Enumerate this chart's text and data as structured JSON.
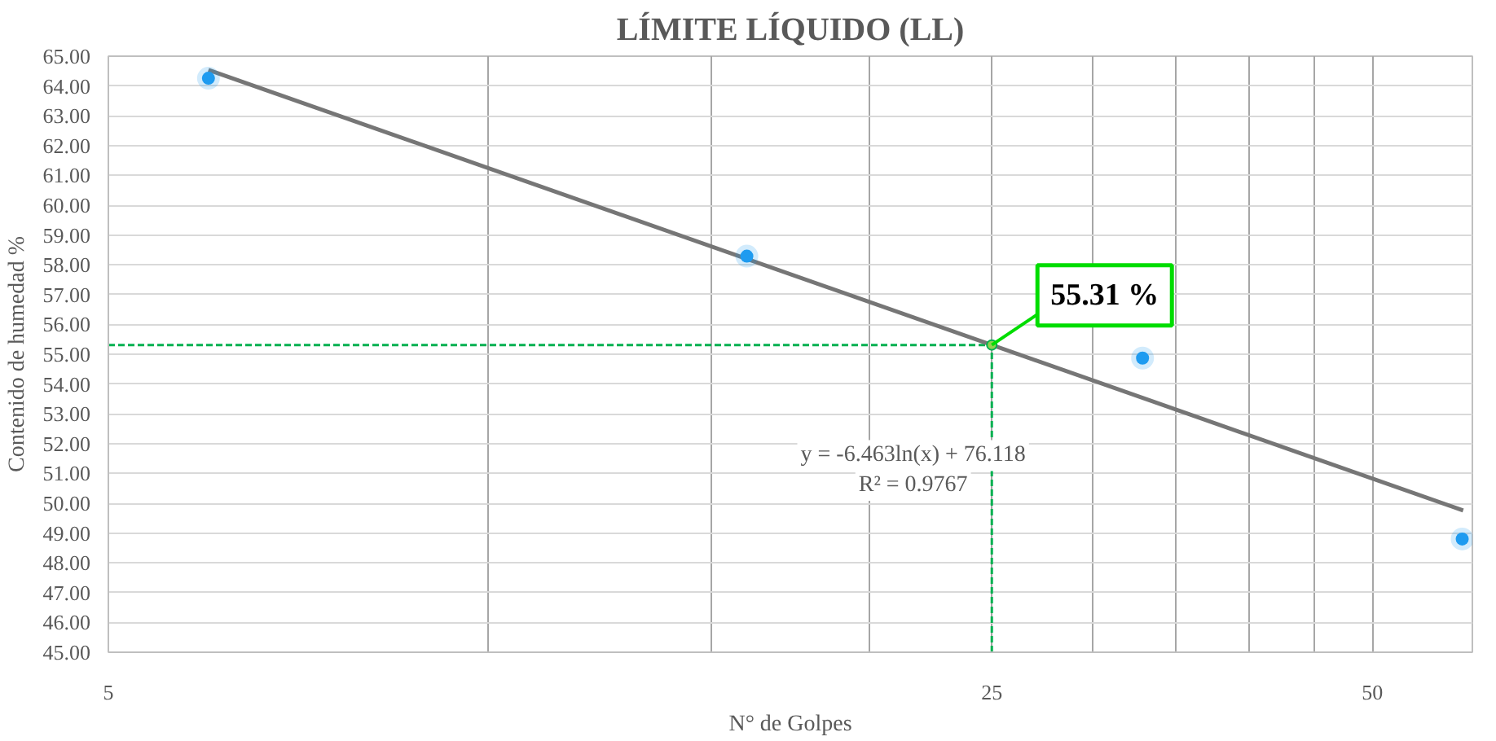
{
  "chart_data": {
    "type": "scatter",
    "title": "LÍMITE LÍQUIDO (LL)",
    "xlabel": "N° de Golpes",
    "ylabel": "Contenido de humedad %",
    "log": "x",
    "grid": true,
    "marker": "circle",
    "x": [
      6,
      16,
      32.9,
      58.9
    ],
    "series": [
      {
        "color": "#1e9bf0",
        "values": [
          64.26,
          58.29,
          54.87,
          48.8
        ]
      },
      {
        "type": "line",
        "marker": "none",
        "color": "#767676",
        "x": [
          6,
          59
        ],
        "values": [
          64.54,
          49.76
        ]
      }
    ],
    "xlim": [
      5,
      60
    ],
    "xticks": [
      {
        "value": 5,
        "label": "5"
      },
      {
        "value": 10,
        "label": null
      },
      {
        "value": 15,
        "label": null
      },
      {
        "value": 20,
        "label": null
      },
      {
        "value": 25,
        "label": "25"
      },
      {
        "value": 30,
        "label": null
      },
      {
        "value": 35,
        "label": null
      },
      {
        "value": 40,
        "label": null
      },
      {
        "value": 45,
        "label": null
      },
      {
        "value": 50,
        "label": "50"
      }
    ],
    "ylim": [
      45,
      65
    ],
    "yticks": [
      {
        "value": 45,
        "label": "45.00"
      },
      {
        "value": 46,
        "label": "46.00"
      },
      {
        "value": 47,
        "label": "47.00"
      },
      {
        "value": 48,
        "label": "48.00"
      },
      {
        "value": 49,
        "label": "49.00"
      },
      {
        "value": 50,
        "label": "50.00"
      },
      {
        "value": 51,
        "label": "51.00"
      },
      {
        "value": 52,
        "label": "52.00"
      },
      {
        "value": 53,
        "label": "53.00"
      },
      {
        "value": 54,
        "label": "54.00"
      },
      {
        "value": 55,
        "label": "55.00"
      },
      {
        "value": 56,
        "label": "56.00"
      },
      {
        "value": 57,
        "label": "57.00"
      },
      {
        "value": 58,
        "label": "58.00"
      },
      {
        "value": 59,
        "label": "59.00"
      },
      {
        "value": 60,
        "label": "60.00"
      },
      {
        "value": 61,
        "label": "61.00"
      },
      {
        "value": 62,
        "label": "62.00"
      },
      {
        "value": 63,
        "label": "63.00"
      },
      {
        "value": 64,
        "label": "64.00"
      },
      {
        "value": 65,
        "label": "65.00"
      }
    ],
    "ref_lines": [
      {
        "axis": "y",
        "value": 55.31,
        "color": "#00b050",
        "line_style": "dashed"
      },
      {
        "axis": "x",
        "value": 25,
        "color": "#00b050",
        "line_style": "dashed"
      }
    ],
    "annotations": [
      {
        "text": "55.31 %",
        "x": 25,
        "y": 55.31
      },
      "y = -6.463ln(x) + 76.118",
      "R² = 0.9767"
    ]
  }
}
